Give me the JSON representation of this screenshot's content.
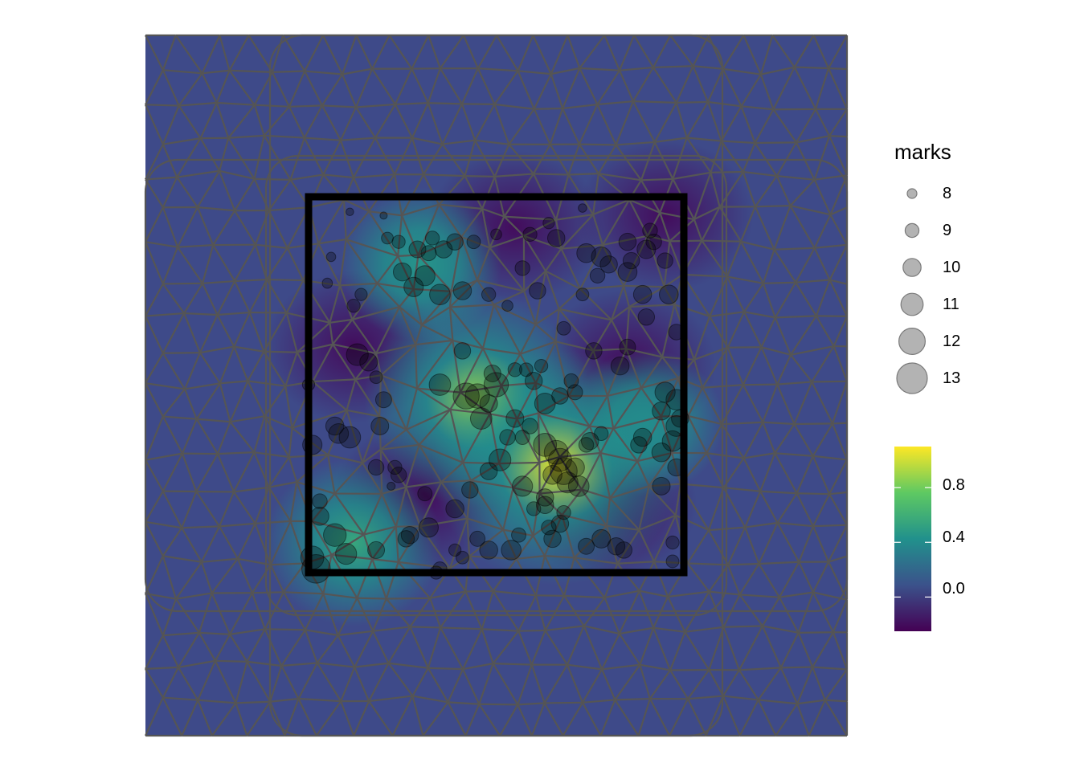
{
  "colors": {
    "mesh_edge": "#555555",
    "point_fill": "#000000",
    "window_border": "#000000",
    "background": "#3e4a89",
    "viridis": [
      "#440154",
      "#3b528b",
      "#21918c",
      "#5ec962",
      "#fde725"
    ]
  },
  "legend": {
    "size_title": "marks",
    "size_labels": [
      "8",
      "9",
      "10",
      "11",
      "12",
      "13"
    ],
    "fill_labels": [
      "0.8",
      "0.4",
      "0.0"
    ]
  },
  "chart_data": {
    "type": "scatter",
    "description_layers": [
      "triangulated mesh",
      "smooth field raster",
      "marked point pattern",
      "observation window"
    ],
    "size_legend": {
      "title": "marks",
      "values": [
        8,
        9,
        10,
        11,
        12,
        13
      ]
    },
    "fill_legend": {
      "breaks": [
        0.0,
        0.4,
        0.8
      ],
      "range": [
        -0.25,
        1.1
      ],
      "palette": "viridis"
    },
    "field_peaks": [
      {
        "x": 0.45,
        "y": 0.46,
        "value": 0.9
      },
      {
        "x": 0.66,
        "y": 0.28,
        "value": 1.05
      },
      {
        "x": 0.12,
        "y": 0.08,
        "value": 0.55
      },
      {
        "x": 0.3,
        "y": 0.82,
        "value": 0.45
      },
      {
        "x": 0.9,
        "y": 0.4,
        "value": 0.4
      }
    ],
    "points": [
      [
        0.11,
        0.96,
        8.3
      ],
      [
        0.2,
        0.95,
        8.2
      ],
      [
        0.73,
        0.97,
        8.5
      ],
      [
        0.06,
        0.84,
        8.7
      ],
      [
        0.05,
        0.77,
        8.9
      ],
      [
        0.12,
        0.71,
        9.6
      ],
      [
        0.14,
        0.74,
        9.4
      ],
      [
        0.21,
        0.89,
        9.3
      ],
      [
        0.24,
        0.88,
        9.6
      ],
      [
        0.29,
        0.86,
        10.5
      ],
      [
        0.32,
        0.85,
        10.1
      ],
      [
        0.36,
        0.86,
        10.6
      ],
      [
        0.39,
        0.88,
        10.4
      ],
      [
        0.33,
        0.89,
        9.8
      ],
      [
        0.44,
        0.88,
        9.7
      ],
      [
        0.5,
        0.9,
        9.1
      ],
      [
        0.64,
        0.93,
        9.2
      ],
      [
        0.59,
        0.9,
        9.8
      ],
      [
        0.57,
        0.81,
        10.0
      ],
      [
        0.25,
        0.8,
        10.8
      ],
      [
        0.28,
        0.76,
        11.1
      ],
      [
        0.31,
        0.79,
        11.3
      ],
      [
        0.35,
        0.74,
        11.4
      ],
      [
        0.41,
        0.75,
        10.8
      ],
      [
        0.48,
        0.74,
        9.8
      ],
      [
        0.53,
        0.71,
        9.1
      ],
      [
        0.61,
        0.75,
        10.4
      ],
      [
        0.66,
        0.89,
        10.6
      ],
      [
        0.74,
        0.85,
        11.0
      ],
      [
        0.78,
        0.84,
        11.2
      ],
      [
        0.8,
        0.82,
        10.6
      ],
      [
        0.85,
        0.88,
        10.6
      ],
      [
        0.86,
        0.83,
        10.4
      ],
      [
        0.9,
        0.86,
        10.9
      ],
      [
        0.91,
        0.91,
        10.0
      ],
      [
        0.92,
        0.88,
        10.2
      ],
      [
        0.95,
        0.83,
        10.2
      ],
      [
        0.89,
        0.74,
        10.8
      ],
      [
        0.96,
        0.74,
        11.0
      ],
      [
        0.98,
        0.64,
        10.2
      ],
      [
        0.9,
        0.68,
        10.4
      ],
      [
        0.85,
        0.8,
        11.0
      ],
      [
        0.77,
        0.79,
        10.0
      ],
      [
        0.73,
        0.74,
        9.5
      ],
      [
        0.68,
        0.65,
        9.7
      ],
      [
        0.76,
        0.59,
        10.4
      ],
      [
        0.85,
        0.6,
        10.3
      ],
      [
        0.83,
        0.55,
        10.8
      ],
      [
        0.41,
        0.59,
        10.4
      ],
      [
        0.35,
        0.5,
        11.6
      ],
      [
        0.42,
        0.47,
        12.7
      ],
      [
        0.45,
        0.47,
        12.3
      ],
      [
        0.46,
        0.41,
        11.6
      ],
      [
        0.48,
        0.45,
        10.7
      ],
      [
        0.5,
        0.5,
        12.3
      ],
      [
        0.49,
        0.53,
        10.5
      ],
      [
        0.55,
        0.54,
        9.8
      ],
      [
        0.58,
        0.54,
        9.7
      ],
      [
        0.6,
        0.51,
        10.6
      ],
      [
        0.62,
        0.55,
        9.6
      ],
      [
        0.63,
        0.45,
        11.4
      ],
      [
        0.59,
        0.39,
        10.2
      ],
      [
        0.55,
        0.41,
        10.7
      ],
      [
        0.57,
        0.36,
        9.9
      ],
      [
        0.63,
        0.34,
        12.0
      ],
      [
        0.66,
        0.32,
        12.2
      ],
      [
        0.68,
        0.27,
        12.9
      ],
      [
        0.67,
        0.3,
        12.0
      ],
      [
        0.65,
        0.26,
        11.0
      ],
      [
        0.69,
        0.24,
        11.5
      ],
      [
        0.71,
        0.28,
        11.0
      ],
      [
        0.75,
        0.35,
        10.6
      ],
      [
        0.78,
        0.37,
        9.8
      ],
      [
        0.7,
        0.51,
        9.9
      ],
      [
        0.71,
        0.48,
        10.1
      ],
      [
        0.67,
        0.47,
        10.4
      ],
      [
        0.74,
        0.34,
        10.0
      ],
      [
        0.72,
        0.23,
        11.4
      ],
      [
        0.57,
        0.23,
        11.3
      ],
      [
        0.6,
        0.17,
        9.8
      ],
      [
        0.63,
        0.18,
        10.6
      ],
      [
        0.64,
        0.12,
        10.0
      ],
      [
        0.65,
        0.09,
        10.6
      ],
      [
        0.63,
        0.2,
        10.6
      ],
      [
        0.67,
        0.13,
        10.6
      ],
      [
        0.68,
        0.16,
        9.8
      ],
      [
        0.56,
        0.1,
        9.9
      ],
      [
        0.54,
        0.06,
        11.2
      ],
      [
        0.48,
        0.06,
        10.8
      ],
      [
        0.45,
        0.09,
        10.1
      ],
      [
        0.41,
        0.04,
        9.5
      ],
      [
        0.39,
        0.06,
        9.4
      ],
      [
        0.34,
        0.0,
        9.6
      ],
      [
        0.35,
        0.01,
        9.8
      ],
      [
        0.32,
        0.12,
        11.1
      ],
      [
        0.26,
        0.09,
        10.4
      ],
      [
        0.27,
        0.1,
        10.6
      ],
      [
        0.18,
        0.06,
        10.5
      ],
      [
        0.1,
        0.05,
        11.5
      ],
      [
        0.07,
        0.1,
        11.9
      ],
      [
        0.03,
        0.15,
        10.8
      ],
      [
        0.01,
        0.04,
        12.0
      ],
      [
        0.02,
        0.01,
        13.3
      ],
      [
        0.03,
        0.19,
        10.0
      ],
      [
        0.07,
        0.39,
        10.8
      ],
      [
        0.08,
        0.37,
        11.2
      ],
      [
        0.11,
        0.36,
        11.6
      ],
      [
        0.19,
        0.39,
        10.7
      ],
      [
        0.2,
        0.46,
        10.3
      ],
      [
        0.18,
        0.52,
        9.5
      ],
      [
        0.16,
        0.56,
        10.7
      ],
      [
        0.13,
        0.58,
        11.7
      ],
      [
        0.0,
        0.5,
        9.4
      ],
      [
        0.01,
        0.34,
        11.1
      ],
      [
        0.18,
        0.28,
        10.2
      ],
      [
        0.23,
        0.28,
        9.8
      ],
      [
        0.24,
        0.26,
        10.2
      ],
      [
        0.22,
        0.23,
        8.4
      ],
      [
        0.31,
        0.21,
        9.9
      ],
      [
        0.39,
        0.17,
        10.8
      ],
      [
        0.43,
        0.22,
        10.4
      ],
      [
        0.48,
        0.27,
        10.6
      ],
      [
        0.51,
        0.3,
        11.7
      ],
      [
        0.53,
        0.36,
        10.2
      ],
      [
        0.78,
        0.09,
        10.9
      ],
      [
        0.82,
        0.07,
        10.6
      ],
      [
        0.84,
        0.06,
        10.4
      ],
      [
        0.94,
        0.23,
        10.7
      ],
      [
        0.94,
        0.32,
        11.0
      ],
      [
        0.97,
        0.35,
        11.4
      ],
      [
        0.88,
        0.34,
        10.4
      ],
      [
        0.89,
        0.36,
        10.8
      ],
      [
        0.95,
        0.48,
        11.3
      ],
      [
        0.94,
        0.43,
        10.8
      ],
      [
        0.98,
        0.46,
        11.4
      ],
      [
        0.99,
        0.41,
        10.6
      ],
      [
        0.98,
        0.28,
        10.6
      ],
      [
        0.98,
        0.39,
        11.4
      ],
      [
        0.97,
        0.08,
        9.6
      ],
      [
        0.97,
        0.03,
        9.5
      ],
      [
        0.74,
        0.07,
        10.3
      ]
    ]
  }
}
